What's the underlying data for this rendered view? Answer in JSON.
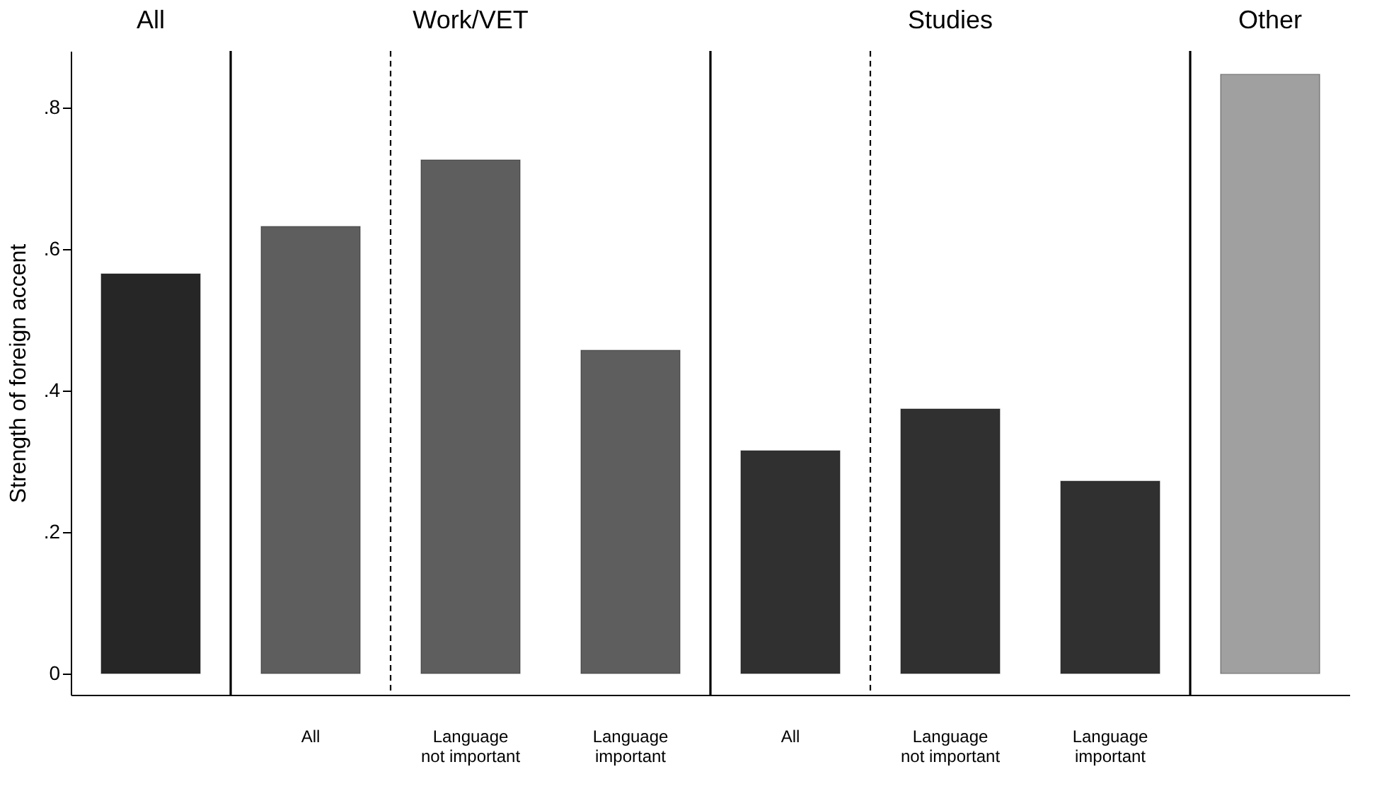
{
  "chart_data": {
    "type": "bar",
    "ylabel": "Strength of foreign accent",
    "categories": [
      null,
      "All",
      "Language not important",
      "Language important",
      "All",
      "Language not important",
      "Language important",
      null
    ],
    "values": [
      0.565,
      0.632,
      0.726,
      0.457,
      0.315,
      0.374,
      0.272,
      0.847
    ],
    "colors": [
      "#262626",
      "#5e5e5e",
      "#5e5e5e",
      "#5e5e5e",
      "#303030",
      "#303030",
      "#303030",
      "#a0a0a0"
    ],
    "ylim": [
      -0.03,
      0.88
    ],
    "yticks": [
      0,
      {
        "value": 0.2,
        "label": ".2"
      },
      {
        "value": 0.4,
        "label": ".4"
      },
      {
        "value": 0.6,
        "label": ".6"
      },
      {
        "value": 0.8,
        "label": ".8"
      }
    ],
    "annotations": [
      "All",
      "Work/VET",
      "Studies",
      "Other"
    ]
  }
}
